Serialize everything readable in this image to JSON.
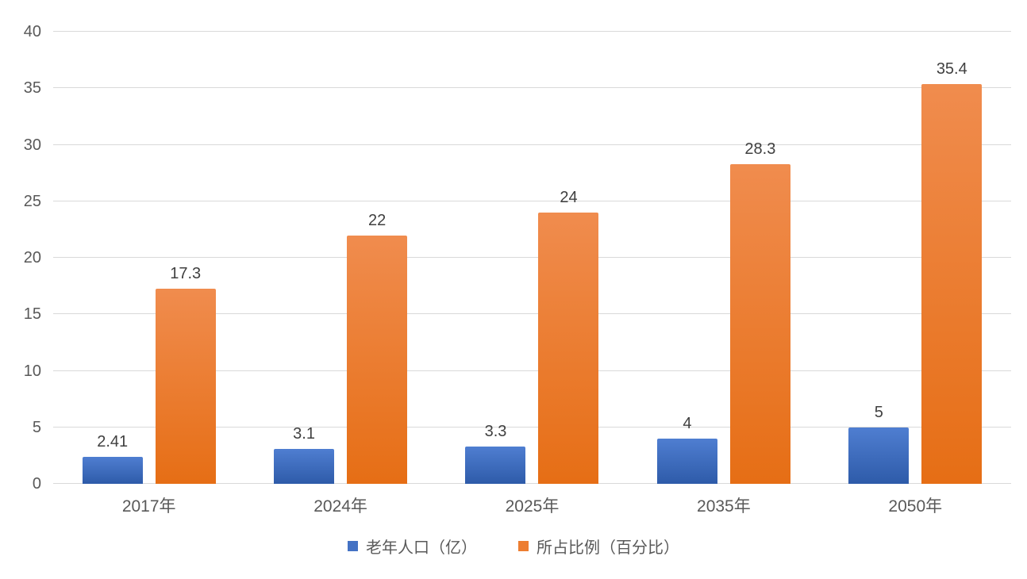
{
  "chart_data": {
    "type": "bar",
    "categories": [
      "2017年",
      "2024年",
      "2025年",
      "2035年",
      "2050年"
    ],
    "series": [
      {
        "key": "elderly-population",
        "name": "老年人口（亿）",
        "color": "#4472c4",
        "gradient_top": "#4f7ed1",
        "gradient_bottom": "#2e5ba9",
        "values": [
          2.41,
          3.1,
          3.3,
          4,
          5
        ],
        "labels": [
          "2.41",
          "3.1",
          "3.3",
          "4",
          "5"
        ]
      },
      {
        "key": "proportion-percentage",
        "name": "所占比例（百分比）",
        "color": "#ed7d31",
        "gradient_top": "#f08c4e",
        "gradient_bottom": "#e66e15",
        "values": [
          17.3,
          22,
          24,
          28.3,
          35.4
        ],
        "labels": [
          "17.3",
          "22",
          "24",
          "28.3",
          "35.4"
        ]
      }
    ],
    "title": "",
    "xlabel": "",
    "ylabel": "",
    "ylim": [
      0,
      40
    ],
    "ytick_step": 5,
    "yticks": [
      0,
      5,
      10,
      15,
      20,
      25,
      30,
      35,
      40
    ],
    "grid": true,
    "legend_position": "bottom",
    "colors": {
      "background": "#ffffff",
      "gridline": "#d9d9d9",
      "axis_text": "#595959",
      "data_label": "#404040"
    }
  }
}
